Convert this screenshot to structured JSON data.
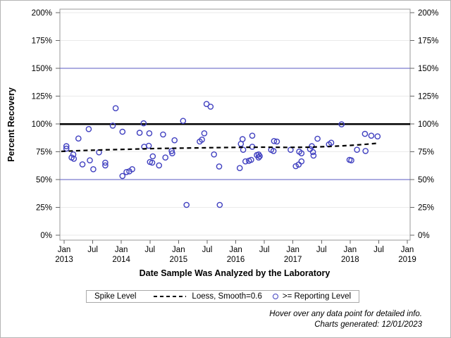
{
  "chart_data": {
    "type": "scatter",
    "xlabel": "Date Sample Was Analyzed by the Laboratory",
    "ylabel": "Percent Recovery",
    "x_range": [
      2012.93,
      2019.05
    ],
    "ylim": [
      0,
      200
    ],
    "grid": "horizontal",
    "legend_position": "bottom",
    "y_axis": {
      "ticks": [
        {
          "label": "0%",
          "value": 0
        },
        {
          "label": "25%",
          "value": 25
        },
        {
          "label": "50%",
          "value": 50
        },
        {
          "label": "75%",
          "value": 75
        },
        {
          "label": "100%",
          "value": 100
        },
        {
          "label": "125%",
          "value": 125
        },
        {
          "label": "150%",
          "value": 150
        },
        {
          "label": "175%",
          "value": 175
        },
        {
          "label": "200%",
          "value": 200
        }
      ]
    },
    "x_axis": {
      "ticks": [
        {
          "month": "Jan",
          "year": "2013",
          "value": 2013
        },
        {
          "month": "Jul",
          "year": "",
          "value": 2013.5
        },
        {
          "month": "Jan",
          "year": "2014",
          "value": 2014
        },
        {
          "month": "Jul",
          "year": "",
          "value": 2014.5
        },
        {
          "month": "Jan",
          "year": "2015",
          "value": 2015
        },
        {
          "month": "Jul",
          "year": "",
          "value": 2015.5
        },
        {
          "month": "Jan",
          "year": "2016",
          "value": 2016
        },
        {
          "month": "Jul",
          "year": "",
          "value": 2016.5
        },
        {
          "month": "Jan",
          "year": "2017",
          "value": 2017
        },
        {
          "month": "Jul",
          "year": "",
          "value": 2017.5
        },
        {
          "month": "Jan",
          "year": "2018",
          "value": 2018
        },
        {
          "month": "Jul",
          "year": "",
          "value": 2018.5
        },
        {
          "month": "Jan",
          "year": "2019",
          "value": 2019
        }
      ]
    },
    "reference_lines": [
      {
        "name": "lower-limit-line",
        "value": 50,
        "color": "#5a5ac0",
        "width": 1
      },
      {
        "name": "spike-level-line",
        "value": 100,
        "color": "#000000",
        "width": 2.5
      },
      {
        "name": "upper-limit-line",
        "value": 150,
        "color": "#5a5ac0",
        "width": 1
      }
    ],
    "series": [
      {
        "name": ">= Reporting Level",
        "type": "scatter",
        "marker": "circle",
        "color": "#4040c0",
        "points": [
          [
            2013.04,
            80.0
          ],
          [
            2013.04,
            77.8
          ],
          [
            2013.13,
            69.8
          ],
          [
            2013.16,
            72.6
          ],
          [
            2013.17,
            68.7
          ],
          [
            2013.25,
            86.9
          ],
          [
            2013.32,
            63.7
          ],
          [
            2013.43,
            95.4
          ],
          [
            2013.45,
            67.3
          ],
          [
            2013.51,
            59.3
          ],
          [
            2013.61,
            74.5
          ],
          [
            2013.72,
            65.2
          ],
          [
            2013.72,
            62.7
          ],
          [
            2013.85,
            98.5
          ],
          [
            2013.9,
            114.1
          ],
          [
            2014.02,
            93.0
          ],
          [
            2014.02,
            53.2
          ],
          [
            2014.09,
            56.8
          ],
          [
            2014.14,
            57.4
          ],
          [
            2014.19,
            59.3
          ],
          [
            2014.32,
            92.0
          ],
          [
            2014.39,
            100.6
          ],
          [
            2014.4,
            79.5
          ],
          [
            2014.48,
            80.4
          ],
          [
            2014.49,
            91.6
          ],
          [
            2014.5,
            65.8
          ],
          [
            2014.54,
            65.2
          ],
          [
            2014.55,
            70.9
          ],
          [
            2014.66,
            62.7
          ],
          [
            2014.73,
            90.5
          ],
          [
            2014.77,
            69.8
          ],
          [
            2014.88,
            75.7
          ],
          [
            2014.89,
            73.6
          ],
          [
            2014.93,
            85.3
          ],
          [
            2015.08,
            102.7
          ],
          [
            2015.14,
            27.2
          ],
          [
            2015.37,
            84.2
          ],
          [
            2015.41,
            85.9
          ],
          [
            2015.45,
            91.6
          ],
          [
            2015.49,
            117.9
          ],
          [
            2015.56,
            115.5
          ],
          [
            2015.62,
            72.6
          ],
          [
            2015.71,
            61.8
          ],
          [
            2015.72,
            27.2
          ],
          [
            2016.07,
            60.3
          ],
          [
            2016.09,
            82.1
          ],
          [
            2016.12,
            86.3
          ],
          [
            2016.13,
            76.8
          ],
          [
            2016.17,
            66.3
          ],
          [
            2016.23,
            66.9
          ],
          [
            2016.27,
            67.7
          ],
          [
            2016.29,
            89.4
          ],
          [
            2016.29,
            79.5
          ],
          [
            2016.37,
            72.0
          ],
          [
            2016.4,
            72.6
          ],
          [
            2016.4,
            69.8
          ],
          [
            2016.42,
            71.0
          ],
          [
            2016.62,
            76.8
          ],
          [
            2016.66,
            75.7
          ],
          [
            2016.67,
            84.6
          ],
          [
            2016.72,
            84.2
          ],
          [
            2016.96,
            76.8
          ],
          [
            2017.05,
            62.0
          ],
          [
            2017.1,
            63.5
          ],
          [
            2017.11,
            75.1
          ],
          [
            2017.15,
            73.6
          ],
          [
            2017.15,
            66.3
          ],
          [
            2017.3,
            77.4
          ],
          [
            2017.33,
            80.0
          ],
          [
            2017.35,
            74.7
          ],
          [
            2017.36,
            71.5
          ],
          [
            2017.43,
            86.7
          ],
          [
            2017.63,
            81.6
          ],
          [
            2017.67,
            83.1
          ],
          [
            2017.85,
            99.6
          ],
          [
            2017.99,
            67.7
          ],
          [
            2018.02,
            67.3
          ],
          [
            2018.12,
            76.8
          ],
          [
            2018.26,
            91.1
          ],
          [
            2018.27,
            75.7
          ],
          [
            2018.37,
            89.4
          ],
          [
            2018.48,
            88.8
          ]
        ]
      },
      {
        "name": "Loess, Smooth=0.6",
        "type": "line",
        "style": "dashed",
        "color": "#000000",
        "points": [
          [
            2012.95,
            75.3
          ],
          [
            2013.3,
            76.1
          ],
          [
            2013.7,
            76.7
          ],
          [
            2014.1,
            77.2
          ],
          [
            2014.6,
            77.9
          ],
          [
            2015.1,
            78.3
          ],
          [
            2015.6,
            78.7
          ],
          [
            2016.1,
            79.0
          ],
          [
            2016.5,
            79.1
          ],
          [
            2016.9,
            78.9
          ],
          [
            2017.3,
            79.1
          ],
          [
            2017.7,
            79.9
          ],
          [
            2018.0,
            80.7
          ],
          [
            2018.25,
            81.6
          ],
          [
            2018.47,
            82.6
          ]
        ]
      }
    ],
    "legend": {
      "title": "Spike Level",
      "entries": [
        "Loess, Smooth=0.6",
        ">= Reporting Level"
      ]
    },
    "colors": {
      "marker": "#4040c0",
      "refline_blue": "#5a5ac0",
      "spike_line": "#000000",
      "grid": "#eaeaea",
      "frame": "#9a9a9a",
      "tick": "#666666"
    }
  },
  "footer": {
    "line1": "Hover over any data point for detailed info.",
    "line2": "Charts generated: 12/01/2023"
  }
}
